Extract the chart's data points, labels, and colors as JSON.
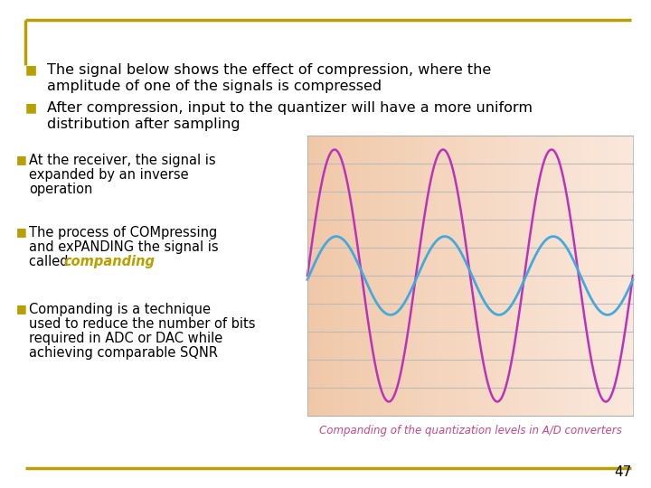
{
  "background_color": "#ffffff",
  "border_color": "#b8a000",
  "slide_number": "47",
  "bullet_color": "#b8a000",
  "text_color": "#000000",
  "bullet1_line1": "The signal below shows the effect of compression, where the",
  "bullet1_line2": "amplitude of one of the signals is compressed",
  "bullet2_line1": "After compression, input to the quantizer will have a more uniform",
  "bullet2_line2": "distribution after sampling",
  "sub1_line1": "At the receiver, the signal is",
  "sub1_line2": "expanded by an inverse",
  "sub1_line3": "operation",
  "sub2_line1": "The process of COMpressing",
  "sub2_line2": "and exPANDING the signal is",
  "sub2_line3_plain": "called ",
  "sub2_line3_italic": "companding",
  "sub3_line1": "Companding is a technique",
  "sub3_line2": "used to reduce the number of bits",
  "sub3_line3": "required in ADC or DAC while",
  "sub3_line4": "achieving comparable SQNR",
  "chart_caption": "Companding of the quantization levels in A/D converters",
  "chart_caption_color": "#cc4488",
  "chart_bg_left": "#f0c8a8",
  "chart_bg_right": "#fae8dc",
  "signal1_color": "#bb33bb",
  "signal2_color": "#44aadd",
  "grid_color": "#bbbbbb",
  "font_size_main": 11.5,
  "font_size_sub": 10.5,
  "font_size_caption": 8.5,
  "font_size_number": 11
}
